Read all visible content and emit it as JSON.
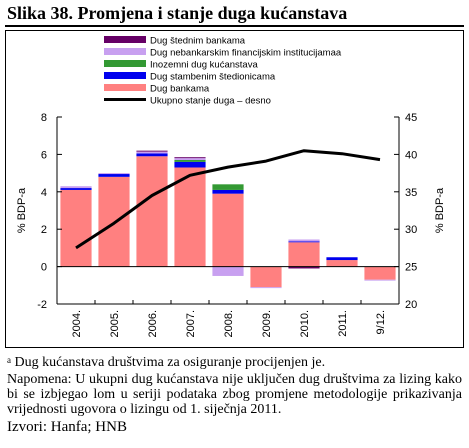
{
  "figure": {
    "title": "Slika 38. Promjena i stanje duga kućanstava",
    "footnote_marker": "a",
    "footnote": "Dug kućanstava društvima za osiguranje procijenjen je.",
    "note": "Napomena: U ukupni dug kućanstava nije uključen dug društvima za lizing kako bi se izbjegao lom u seriji podataka zbog promjene metodologije prikazivanja vrijednosti ugovora o lizingu od 1. siječnja 2011.",
    "sources": "Izvori: Hanfa; HNB"
  },
  "chart_data": {
    "type": "bar",
    "stacked": true,
    "categories": [
      "2004.",
      "2005.",
      "2006.",
      "2007.",
      "2008.",
      "2009.",
      "2010.",
      "2011.",
      "9/12."
    ],
    "ylabel": "% BDP-a",
    "ylim": [
      -2,
      8
    ],
    "yticks": [
      -2,
      0,
      2,
      4,
      6,
      8
    ],
    "y2label": "% BDP-a",
    "y2lim": [
      20,
      45
    ],
    "y2ticks": [
      20,
      25,
      30,
      35,
      40,
      45
    ],
    "grid": false,
    "legend_position": "top-left",
    "series": [
      {
        "name": "Dug bankama",
        "color": "#ff8080",
        "values": [
          4.1,
          4.8,
          5.9,
          5.3,
          3.9,
          -1.1,
          1.3,
          0.35,
          -0.7
        ]
      },
      {
        "name": "Dug stambenim štedionicama",
        "color": "#0000ee",
        "values": [
          0.1,
          0.15,
          0.15,
          0.3,
          0.2,
          0.0,
          0.05,
          0.15,
          0.0
        ]
      },
      {
        "name": "Inozemni dug kućanstava",
        "color": "#339933",
        "values": [
          0.0,
          0.0,
          0.0,
          0.1,
          0.3,
          0.0,
          0.0,
          0.0,
          0.0
        ]
      },
      {
        "name": "Dug nebankarskim financijskim institucijamaa",
        "color": "#c8a0f0",
        "values": [
          0.1,
          0.05,
          0.1,
          0.1,
          -0.5,
          -0.05,
          0.1,
          0.0,
          -0.05
        ]
      },
      {
        "name": "Dug štednim bankama",
        "color": "#660066",
        "values": [
          0.0,
          0.0,
          0.05,
          0.05,
          0.0,
          0.0,
          -0.1,
          0.0,
          0.0
        ]
      }
    ],
    "line_series": {
      "name": "Ukupno stanje duga – desno",
      "color": "#000000",
      "axis": "right",
      "values": [
        27.5,
        30.8,
        34.5,
        37.2,
        38.3,
        39.1,
        40.5,
        40.1,
        39.3
      ]
    }
  }
}
